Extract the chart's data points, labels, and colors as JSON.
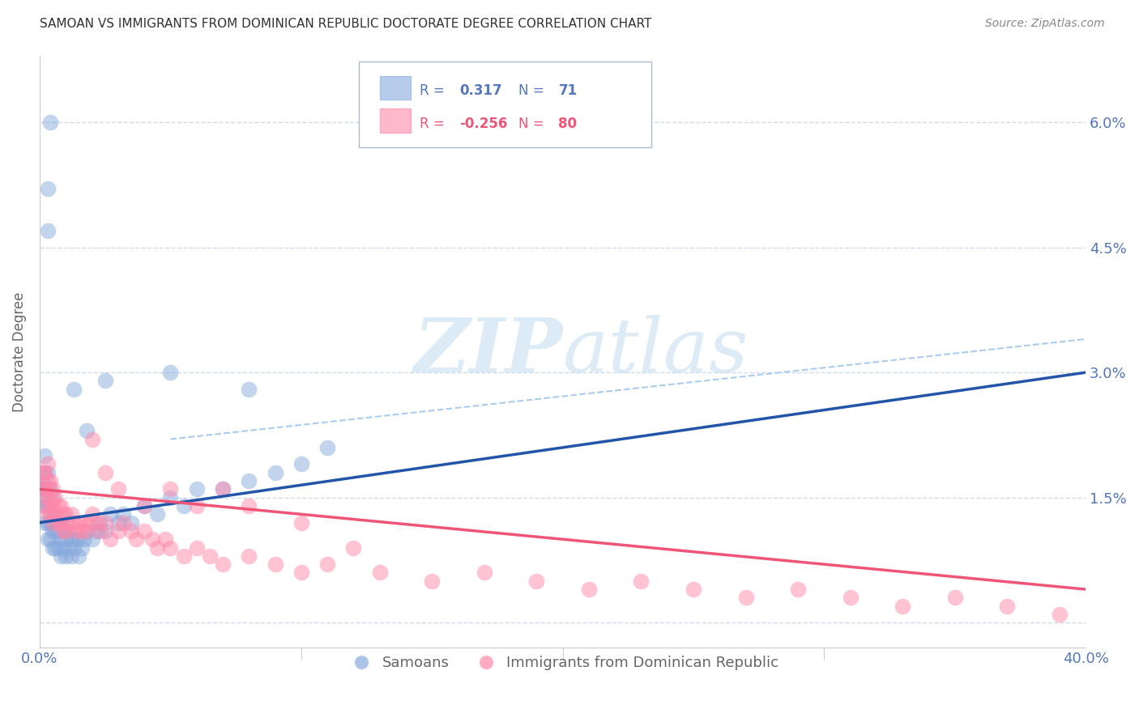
{
  "title": "SAMOAN VS IMMIGRANTS FROM DOMINICAN REPUBLIC DOCTORATE DEGREE CORRELATION CHART",
  "source": "Source: ZipAtlas.com",
  "ylabel": "Doctorate Degree",
  "yticks": [
    0.0,
    0.015,
    0.03,
    0.045,
    0.06
  ],
  "ytick_labels": [
    "",
    "1.5%",
    "3.0%",
    "4.5%",
    "6.0%"
  ],
  "xtick_labels": [
    "0.0%",
    "40.0%"
  ],
  "xlim": [
    0.0,
    0.4
  ],
  "ylim": [
    -0.003,
    0.068
  ],
  "color_blue": "#88AADD",
  "color_pink": "#FF88AA",
  "color_blue_line": "#2255AA",
  "color_pink_line": "#EE5577",
  "color_dashed": "#AACCEE",
  "background_color": "#FFFFFF",
  "grid_color": "#CCDDEE",
  "title_color": "#333333",
  "axis_label_color": "#5577BB",
  "watermark_color": "#D8E8F5",
  "legend_box_color": "#AABBCC",
  "blue_line_x0": 0.0,
  "blue_line_x1": 0.4,
  "blue_line_y0": 0.012,
  "blue_line_y1": 0.03,
  "pink_line_x0": 0.0,
  "pink_line_x1": 0.4,
  "pink_line_y0": 0.016,
  "pink_line_y1": 0.004,
  "dashed_line_x0": 0.05,
  "dashed_line_x1": 0.4,
  "dashed_line_y0": 0.022,
  "dashed_line_y1": 0.034,
  "samoans_x": [
    0.001,
    0.001,
    0.001,
    0.002,
    0.002,
    0.002,
    0.002,
    0.002,
    0.003,
    0.003,
    0.003,
    0.003,
    0.003,
    0.004,
    0.004,
    0.004,
    0.004,
    0.005,
    0.005,
    0.005,
    0.005,
    0.006,
    0.006,
    0.006,
    0.007,
    0.007,
    0.007,
    0.008,
    0.008,
    0.008,
    0.009,
    0.009,
    0.01,
    0.01,
    0.011,
    0.011,
    0.012,
    0.012,
    0.013,
    0.014,
    0.015,
    0.015,
    0.016,
    0.017,
    0.018,
    0.02,
    0.022,
    0.023,
    0.025,
    0.027,
    0.03,
    0.032,
    0.035,
    0.04,
    0.045,
    0.05,
    0.055,
    0.06,
    0.07,
    0.08,
    0.09,
    0.1,
    0.11,
    0.013,
    0.018,
    0.025,
    0.05,
    0.08,
    0.003,
    0.003,
    0.004
  ],
  "samoans_y": [
    0.015,
    0.016,
    0.017,
    0.012,
    0.014,
    0.016,
    0.018,
    0.02,
    0.01,
    0.012,
    0.014,
    0.016,
    0.018,
    0.01,
    0.012,
    0.014,
    0.016,
    0.009,
    0.011,
    0.013,
    0.015,
    0.009,
    0.011,
    0.013,
    0.009,
    0.011,
    0.012,
    0.008,
    0.01,
    0.012,
    0.009,
    0.011,
    0.008,
    0.01,
    0.009,
    0.011,
    0.008,
    0.01,
    0.009,
    0.01,
    0.008,
    0.01,
    0.009,
    0.01,
    0.011,
    0.01,
    0.011,
    0.012,
    0.011,
    0.013,
    0.012,
    0.013,
    0.012,
    0.014,
    0.013,
    0.015,
    0.014,
    0.016,
    0.016,
    0.017,
    0.018,
    0.019,
    0.021,
    0.028,
    0.023,
    0.029,
    0.03,
    0.028,
    0.047,
    0.052,
    0.06
  ],
  "dr_x": [
    0.001,
    0.001,
    0.002,
    0.002,
    0.002,
    0.003,
    0.003,
    0.003,
    0.003,
    0.004,
    0.004,
    0.004,
    0.005,
    0.005,
    0.005,
    0.006,
    0.006,
    0.007,
    0.007,
    0.008,
    0.008,
    0.009,
    0.009,
    0.01,
    0.01,
    0.011,
    0.012,
    0.013,
    0.014,
    0.015,
    0.016,
    0.017,
    0.018,
    0.019,
    0.02,
    0.022,
    0.023,
    0.025,
    0.027,
    0.03,
    0.032,
    0.035,
    0.037,
    0.04,
    0.043,
    0.045,
    0.048,
    0.05,
    0.055,
    0.06,
    0.065,
    0.07,
    0.08,
    0.09,
    0.1,
    0.11,
    0.13,
    0.15,
    0.17,
    0.19,
    0.21,
    0.23,
    0.25,
    0.27,
    0.29,
    0.31,
    0.33,
    0.35,
    0.37,
    0.39,
    0.02,
    0.025,
    0.03,
    0.04,
    0.05,
    0.06,
    0.07,
    0.08,
    0.1,
    0.12
  ],
  "dr_y": [
    0.016,
    0.018,
    0.014,
    0.016,
    0.018,
    0.013,
    0.015,
    0.017,
    0.019,
    0.013,
    0.015,
    0.017,
    0.012,
    0.014,
    0.016,
    0.013,
    0.015,
    0.012,
    0.014,
    0.012,
    0.014,
    0.011,
    0.013,
    0.011,
    0.013,
    0.012,
    0.013,
    0.012,
    0.011,
    0.012,
    0.011,
    0.012,
    0.011,
    0.012,
    0.013,
    0.012,
    0.011,
    0.012,
    0.01,
    0.011,
    0.012,
    0.011,
    0.01,
    0.011,
    0.01,
    0.009,
    0.01,
    0.009,
    0.008,
    0.009,
    0.008,
    0.007,
    0.008,
    0.007,
    0.006,
    0.007,
    0.006,
    0.005,
    0.006,
    0.005,
    0.004,
    0.005,
    0.004,
    0.003,
    0.004,
    0.003,
    0.002,
    0.003,
    0.002,
    0.001,
    0.022,
    0.018,
    0.016,
    0.014,
    0.016,
    0.014,
    0.016,
    0.014,
    0.012,
    0.009
  ]
}
